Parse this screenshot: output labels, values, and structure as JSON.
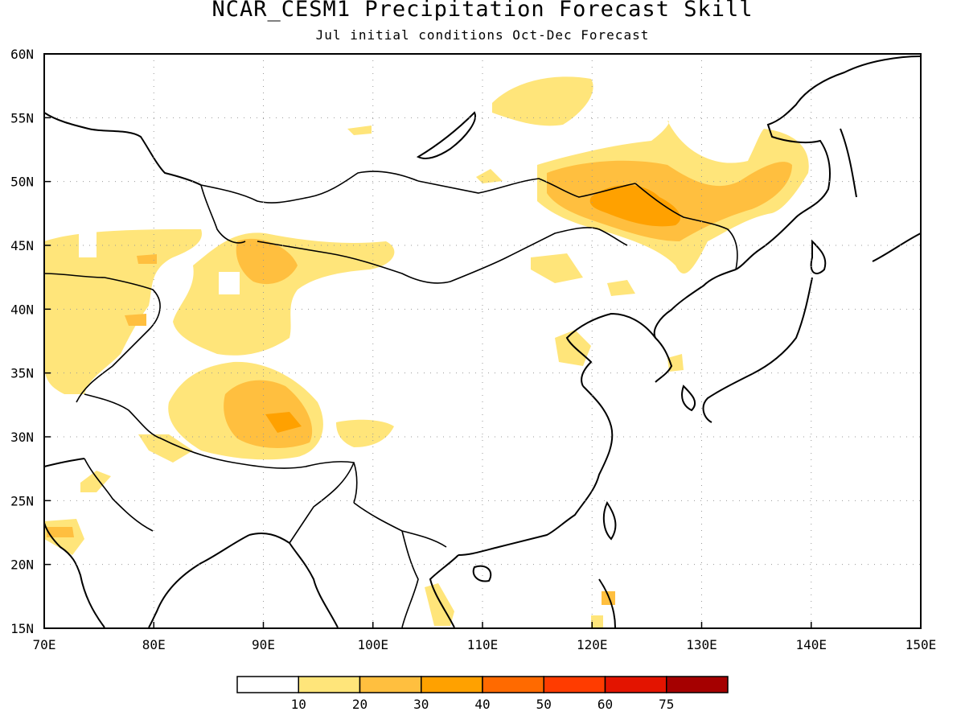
{
  "title": "NCAR_CESM1 Precipitation Forecast Skill",
  "subtitle": "Jul initial conditions  Oct-Dec Forecast",
  "map": {
    "lon_range": [
      70,
      150
    ],
    "lat_range": [
      15,
      60
    ],
    "lon_ticks": [
      "70E",
      "80E",
      "90E",
      "100E",
      "110E",
      "120E",
      "130E",
      "140E",
      "150E"
    ],
    "lat_ticks": [
      "15N",
      "20N",
      "25N",
      "30N",
      "35N",
      "40N",
      "45N",
      "50N",
      "55N",
      "60N"
    ],
    "grid": true
  },
  "colorbar": {
    "colors": [
      "#ffffff",
      "#ffe57a",
      "#ffbf3f",
      "#ffa100",
      "#ff6a00",
      "#ff3c00",
      "#e31400",
      "#a50000"
    ],
    "labels": [
      "10",
      "20",
      "30",
      "40",
      "50",
      "60",
      "75"
    ]
  }
}
